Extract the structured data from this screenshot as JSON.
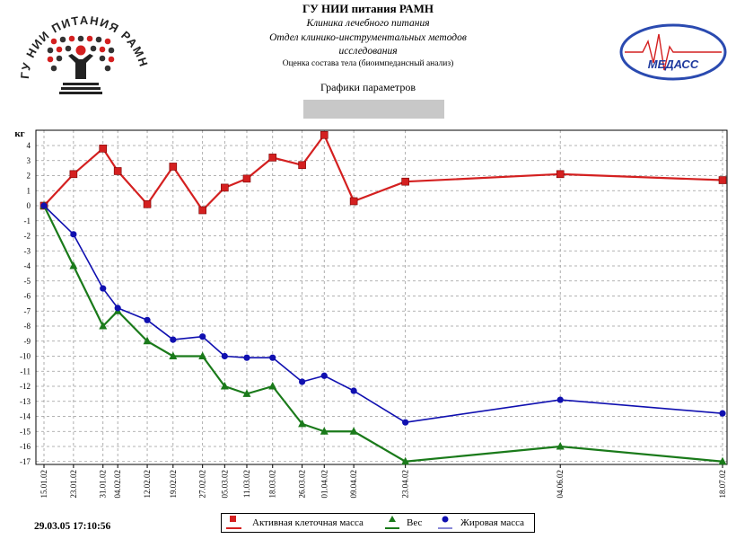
{
  "header": {
    "org": "ГУ НИИ питания РАМН",
    "clinic": "Клиника лечебного питания",
    "dept_line1": "Отдел клинико-инструментальных методов",
    "dept_line2": "исследования",
    "analysis": "Оценка состава тела (биоимпедансный анализ)",
    "graphs_title": "Графики параметров",
    "logo_left_text": "ГУ НИИ ПИТАНИЯ РАМН",
    "logo_right_text": "МЕДАСС"
  },
  "footer": {
    "timestamp": "29.03.05   17:10:56"
  },
  "colors": {
    "active": "#d42020",
    "weight": "#1a7a1a",
    "fat": "#1010b0",
    "grid": "#9a9a9a"
  },
  "chart_data": {
    "type": "line",
    "ylabel": "кг",
    "ylim": [
      -17,
      4.5
    ],
    "yticks": [
      4,
      3,
      2,
      1,
      0,
      -1,
      -2,
      -3,
      -4,
      -5,
      -6,
      -7,
      -8,
      -9,
      -10,
      -11,
      -12,
      -13,
      -14,
      -15,
      -16,
      -17
    ],
    "x_dates": [
      "15.01.02",
      "23.01.02",
      "31.01.02",
      "04.02.02",
      "12.02.02",
      "19.02.02",
      "27.02.02",
      "05.03.02",
      "11.03.02",
      "18.03.02",
      "26.03.02",
      "01.04.02",
      "09.04.02",
      "23.04.02",
      "04.06.02",
      "18.07.02"
    ],
    "x_date_range": [
      "2002-01-15",
      "2002-07-18"
    ],
    "series": [
      {
        "name": "Активная клеточная масса",
        "color": "#d42020",
        "marker": "square",
        "points": [
          {
            "x": "2002-01-15",
            "y": 0
          },
          {
            "x": "2002-01-23",
            "y": 2.1
          },
          {
            "x": "2002-01-31",
            "y": 3.8
          },
          {
            "x": "2002-02-04",
            "y": 2.3
          },
          {
            "x": "2002-02-12",
            "y": 0.1
          },
          {
            "x": "2002-02-19",
            "y": 2.6
          },
          {
            "x": "2002-02-27",
            "y": -0.3
          },
          {
            "x": "2002-03-05",
            "y": 1.2
          },
          {
            "x": "2002-03-11",
            "y": 1.8
          },
          {
            "x": "2002-03-18",
            "y": 3.2
          },
          {
            "x": "2002-03-26",
            "y": 2.7
          },
          {
            "x": "2002-04-01",
            "y": 4.7
          },
          {
            "x": "2002-04-09",
            "y": 0.3
          },
          {
            "x": "2002-04-23",
            "y": 1.6
          },
          {
            "x": "2002-06-04",
            "y": 2.1
          },
          {
            "x": "2002-07-18",
            "y": 1.7
          }
        ]
      },
      {
        "name": "Вес",
        "color": "#1a7a1a",
        "marker": "triangle",
        "points": [
          {
            "x": "2002-01-15",
            "y": 0
          },
          {
            "x": "2002-01-23",
            "y": -4
          },
          {
            "x": "2002-01-31",
            "y": -8
          },
          {
            "x": "2002-02-04",
            "y": -7
          },
          {
            "x": "2002-02-12",
            "y": -9
          },
          {
            "x": "2002-02-19",
            "y": -10
          },
          {
            "x": "2002-02-27",
            "y": -10
          },
          {
            "x": "2002-03-05",
            "y": -12
          },
          {
            "x": "2002-03-11",
            "y": -12.5
          },
          {
            "x": "2002-03-18",
            "y": -12
          },
          {
            "x": "2002-03-26",
            "y": -14.5
          },
          {
            "x": "2002-04-01",
            "y": -15
          },
          {
            "x": "2002-04-09",
            "y": -15
          },
          {
            "x": "2002-04-23",
            "y": -17
          },
          {
            "x": "2002-06-04",
            "y": -16
          },
          {
            "x": "2002-07-18",
            "y": -17
          }
        ]
      },
      {
        "name": "Жировая масса",
        "color": "#1010b0",
        "marker": "circle",
        "points": [
          {
            "x": "2002-01-15",
            "y": 0
          },
          {
            "x": "2002-01-23",
            "y": -1.9
          },
          {
            "x": "2002-01-31",
            "y": -5.5
          },
          {
            "x": "2002-02-04",
            "y": -6.8
          },
          {
            "x": "2002-02-12",
            "y": -7.6
          },
          {
            "x": "2002-02-19",
            "y": -8.9
          },
          {
            "x": "2002-02-27",
            "y": -8.7
          },
          {
            "x": "2002-03-05",
            "y": -10
          },
          {
            "x": "2002-03-11",
            "y": -10.1
          },
          {
            "x": "2002-03-18",
            "y": -10.1
          },
          {
            "x": "2002-03-26",
            "y": -11.7
          },
          {
            "x": "2002-04-01",
            "y": -11.3
          },
          {
            "x": "2002-04-09",
            "y": -12.3
          },
          {
            "x": "2002-04-23",
            "y": -14.4
          },
          {
            "x": "2002-06-04",
            "y": -12.9
          },
          {
            "x": "2002-07-18",
            "y": -13.8
          }
        ]
      }
    ],
    "legend_position": "bottom-center",
    "grid": true
  }
}
